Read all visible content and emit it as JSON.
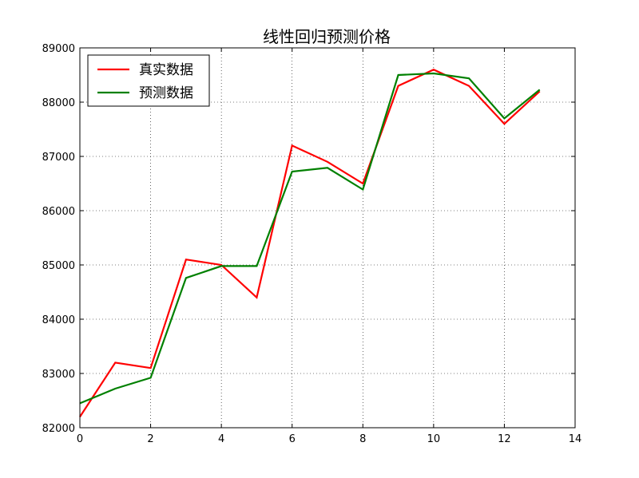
{
  "chart_data": {
    "type": "line",
    "title": "线性回归预测价格",
    "xlabel": "",
    "ylabel": "",
    "xlim": [
      0,
      14
    ],
    "ylim": [
      82000,
      89000
    ],
    "xticks": [
      0,
      2,
      4,
      6,
      8,
      10,
      12,
      14
    ],
    "yticks": [
      82000,
      83000,
      84000,
      85000,
      86000,
      87000,
      88000,
      89000
    ],
    "grid": true,
    "legend_position": "top-left",
    "x": [
      0,
      1,
      2,
      3,
      4,
      5,
      6,
      7,
      8,
      9,
      10,
      11,
      12,
      13
    ],
    "series": [
      {
        "name": "真实数据",
        "color": "#ff0000",
        "values": [
          82200,
          83200,
          83100,
          85100,
          85000,
          84400,
          87200,
          86900,
          86500,
          88300,
          88600,
          88300,
          87600,
          88200
        ]
      },
      {
        "name": "预测数据",
        "color": "#008000",
        "values": [
          82450,
          82720,
          82920,
          84760,
          84980,
          84980,
          86720,
          86790,
          86390,
          88500,
          88530,
          88440,
          87700,
          88230
        ]
      }
    ]
  }
}
